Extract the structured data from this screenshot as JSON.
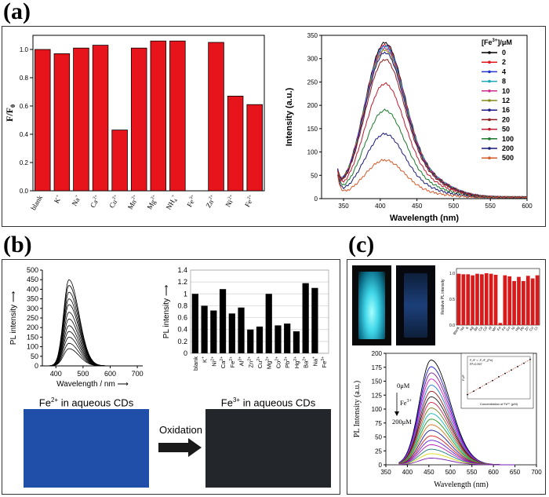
{
  "panels": {
    "a": "(a)",
    "b": "(b)",
    "c": "(c)"
  },
  "chart_data": [
    {
      "id": "a-bar",
      "type": "bar",
      "ylabel": "F/F",
      "ylabel_sub": "0",
      "ylim": [
        0,
        1.1
      ],
      "yticks": [
        "0.0",
        "0.2",
        "0.4",
        "0.6",
        "0.8",
        "1.0"
      ],
      "categories": [
        "blank",
        "K",
        "Na",
        "Ca",
        "Cu",
        "Mn",
        "Mg",
        "NH",
        "Fe",
        "Zn",
        "Ni",
        "Fe"
      ],
      "category_sup": [
        "",
        "+",
        "+",
        "2+",
        "2+",
        "2+",
        "2+",
        "+",
        "3+",
        "2+",
        "2+",
        "2+"
      ],
      "category_sub": [
        "",
        "",
        "",
        "",
        "",
        "",
        "",
        "4",
        "",
        "",
        "",
        ""
      ],
      "values": [
        1.0,
        0.97,
        1.01,
        1.03,
        0.43,
        1.01,
        1.06,
        1.06,
        0.0,
        1.05,
        0.67,
        0.61
      ],
      "color": "#e8141b"
    },
    {
      "id": "a-line",
      "type": "line",
      "xlabel": "Wavelength (nm)",
      "ylabel": "Intensity (a.u.)",
      "xlim": [
        320,
        600
      ],
      "ylim": [
        0,
        350
      ],
      "xticks": [
        "350",
        "400",
        "450",
        "500",
        "550",
        "600"
      ],
      "yticks": [
        "0",
        "50",
        "100",
        "150",
        "200",
        "250",
        "300",
        "350"
      ],
      "legend_title": "[Fe",
      "legend_title_sup": "3+",
      "legend_title_tail": "]/μM",
      "series_peaks": [
        315,
        311,
        309,
        306,
        303,
        300,
        295,
        281,
        232,
        178,
        130,
        77
      ],
      "series": [
        {
          "name": "0",
          "color": "#000000"
        },
        {
          "name": "2",
          "color": "#e3161b"
        },
        {
          "name": "4",
          "color": "#2233cc"
        },
        {
          "name": "8",
          "color": "#1aa8b5"
        },
        {
          "name": "10",
          "color": "#d12d8e"
        },
        {
          "name": "12",
          "color": "#8a8a1a"
        },
        {
          "name": "16",
          "color": "#1a1a8c"
        },
        {
          "name": "20",
          "color": "#8c1a1a"
        },
        {
          "name": "50",
          "color": "#c0192e"
        },
        {
          "name": "100",
          "color": "#1a7a2a"
        },
        {
          "name": "200",
          "color": "#1a1a7a"
        },
        {
          "name": "500",
          "color": "#d55a2a"
        }
      ]
    },
    {
      "id": "b-line",
      "type": "line",
      "xlabel": "Wavelength / nm",
      "ylabel": "PL intensity",
      "xlim": [
        350,
        720
      ],
      "ylim": [
        0,
        500
      ],
      "xticks": [
        "400",
        "500",
        "600",
        "700"
      ],
      "yticks": [
        "0",
        "50",
        "100",
        "150",
        "200",
        "250",
        "300",
        "350",
        "400",
        "450",
        "500"
      ],
      "peaks": [
        450,
        420,
        385,
        350,
        320,
        280,
        245,
        210,
        180,
        150,
        118,
        90
      ]
    },
    {
      "id": "b-bar",
      "type": "bar",
      "ylabel": "PL intensity",
      "ylim": [
        0,
        1.4
      ],
      "yticks": [
        "0",
        "0.2",
        "0.4",
        "0.6",
        "0.8",
        "1",
        "1.2",
        "1.4"
      ],
      "categories": [
        "blank",
        "K",
        "Ni",
        "Ca",
        "Fe",
        "Al",
        "Zn",
        "Cu",
        "Mg",
        "Co",
        "Pb",
        "Hg",
        "Ba",
        "Na",
        "Fe"
      ],
      "category_sup": [
        "",
        "+",
        "2+",
        "2+",
        "2+",
        "3+",
        "2+",
        "2+",
        "2+",
        "2+",
        "2+",
        "2+",
        "2+",
        "+",
        "3+"
      ],
      "values": [
        1.0,
        0.8,
        0.72,
        1.08,
        0.67,
        0.77,
        0.4,
        0.45,
        1.0,
        0.47,
        0.5,
        0.37,
        1.18,
        1.1,
        0.0
      ],
      "color": "#000000"
    },
    {
      "id": "c-bar",
      "type": "bar",
      "ylabel": "Relative PL intensity",
      "ylim": [
        0,
        1.0
      ],
      "yticks": [
        "0.0",
        "0.5",
        "1.0"
      ],
      "categories": [
        "Blank",
        "Na",
        "K",
        "Ag",
        "Ba",
        "Ca",
        "Cd",
        "Al",
        "Mn",
        "Fe",
        "Fe",
        "Co",
        "Ni",
        "Hg",
        "Pb",
        "Zn",
        "Cu",
        "Cr"
      ],
      "values": [
        0.99,
        0.98,
        0.98,
        0.96,
        0.99,
        0.98,
        1.0,
        0.99,
        0.97,
        0.04,
        0.96,
        0.94,
        0.85,
        0.93,
        0.85,
        0.95,
        0.9,
        0.96
      ],
      "color": "#d91a1a"
    },
    {
      "id": "c-line",
      "type": "line",
      "xlabel": "Wavelength (nm)",
      "ylabel": "PL Intensity (a.u.)",
      "xlim": [
        350,
        700
      ],
      "ylim": [
        0,
        200
      ],
      "xticks": [
        "350",
        "400",
        "450",
        "500",
        "550",
        "600",
        "650",
        "700"
      ],
      "yticks": [
        "0",
        "25",
        "50",
        "75",
        "100",
        "125",
        "150",
        "175",
        "200"
      ],
      "annotation_top": "0μM",
      "annotation_ion": "Fe",
      "annotation_ion_sup": "3+",
      "annotation_bottom": "200μM",
      "peaks": [
        188,
        176,
        165,
        154,
        143,
        132,
        122,
        112,
        102,
        92,
        82,
        72,
        62,
        52,
        44,
        36,
        28,
        20,
        12
      ],
      "colors": [
        "#000000",
        "#1a1ad9",
        "#7a1a9c",
        "#d91ad9",
        "#1a7ad9",
        "#9c1a1a",
        "#1a1a1a",
        "#d91a4a",
        "#7a7a1a",
        "#1ab5b5",
        "#1a9c1a",
        "#d9741a",
        "#1a1a9c",
        "#d91a1a",
        "#5a1ad9",
        "#b51ab5",
        "#1a7a7a",
        "#d9d91a",
        "#7a1ab5"
      ]
    }
  ],
  "inset_c": {
    "equation": "F₀/F = -F₀/F_{Fe}",
    "r2": "R²=0.997",
    "xlabel": "Concentration of Fe³⁺ (μM)",
    "ylabel": "F₀/F",
    "points": [
      [
        0,
        1.0
      ],
      [
        20,
        1.08
      ],
      [
        40,
        1.16
      ],
      [
        60,
        1.25
      ],
      [
        80,
        1.33
      ],
      [
        100,
        1.42
      ],
      [
        120,
        1.5
      ],
      [
        140,
        1.58
      ],
      [
        160,
        1.66
      ],
      [
        180,
        1.74
      ],
      [
        200,
        1.83
      ]
    ],
    "xlim": [
      0,
      200
    ],
    "ylim": [
      0.9,
      1.9
    ]
  },
  "photos_b": {
    "left_ion": "Fe",
    "left_sup": "2+",
    "left_tail": " in aqueous CDs",
    "right_ion": "Fe",
    "right_sup": "3+",
    "right_tail": " in aqueous CDs",
    "arrow_label": "Oxidation",
    "left_color": "#1f4fa8",
    "right_color": "#23262b"
  }
}
